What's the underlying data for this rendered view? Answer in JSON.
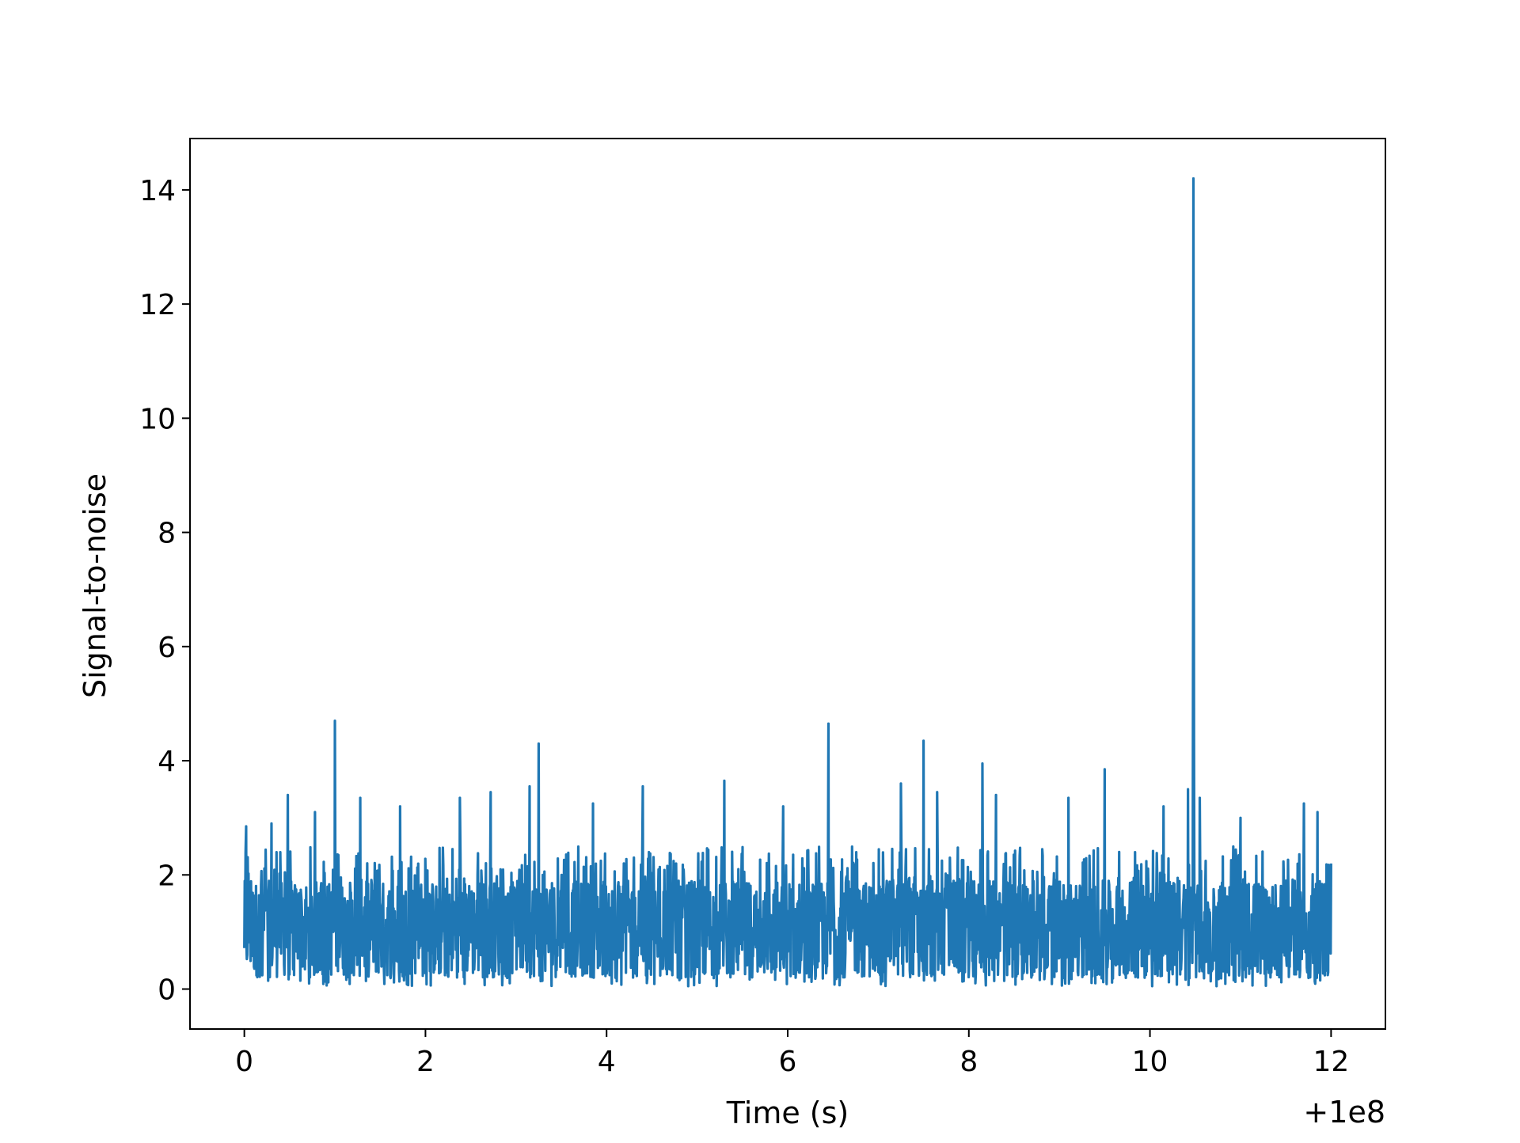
{
  "chart_data": {
    "type": "line",
    "xlabel": "Time (s)",
    "ylabel": "Signal-to-noise",
    "x_offset_label": "+1e8",
    "xlim": [
      -0.6,
      12.6
    ],
    "ylim": [
      -0.7,
      14.9
    ],
    "xticks": [
      0,
      2,
      4,
      6,
      8,
      10,
      12
    ],
    "yticks": [
      0,
      2,
      4,
      6,
      8,
      10,
      12,
      14
    ],
    "grid": false,
    "series": [
      {
        "color": "#1f77b4",
        "x_start": 0,
        "x_end": 12,
        "baseline_range": [
          0.05,
          2.2
        ],
        "peaks": [
          {
            "x": 0.02,
            "y": 2.85
          },
          {
            "x": 0.3,
            "y": 2.9
          },
          {
            "x": 0.48,
            "y": 3.4
          },
          {
            "x": 0.78,
            "y": 3.1
          },
          {
            "x": 1.0,
            "y": 4.7
          },
          {
            "x": 1.28,
            "y": 3.35
          },
          {
            "x": 1.72,
            "y": 3.2
          },
          {
            "x": 2.38,
            "y": 3.35
          },
          {
            "x": 2.72,
            "y": 3.45
          },
          {
            "x": 3.15,
            "y": 3.55
          },
          {
            "x": 3.25,
            "y": 4.3
          },
          {
            "x": 3.85,
            "y": 3.25
          },
          {
            "x": 4.4,
            "y": 3.55
          },
          {
            "x": 5.3,
            "y": 3.65
          },
          {
            "x": 5.95,
            "y": 3.2
          },
          {
            "x": 6.45,
            "y": 4.65
          },
          {
            "x": 7.25,
            "y": 3.6
          },
          {
            "x": 7.5,
            "y": 4.35
          },
          {
            "x": 7.65,
            "y": 3.45
          },
          {
            "x": 8.15,
            "y": 3.95
          },
          {
            "x": 8.3,
            "y": 3.4
          },
          {
            "x": 9.1,
            "y": 3.35
          },
          {
            "x": 9.5,
            "y": 3.85
          },
          {
            "x": 10.15,
            "y": 3.2
          },
          {
            "x": 10.42,
            "y": 3.5
          },
          {
            "x": 10.48,
            "y": 14.2
          },
          {
            "x": 10.55,
            "y": 3.35
          },
          {
            "x": 11.0,
            "y": 3.0
          },
          {
            "x": 11.7,
            "y": 3.25
          },
          {
            "x": 11.85,
            "y": 3.1
          },
          {
            "x": 12.0,
            "y": 2.2
          }
        ]
      }
    ]
  }
}
